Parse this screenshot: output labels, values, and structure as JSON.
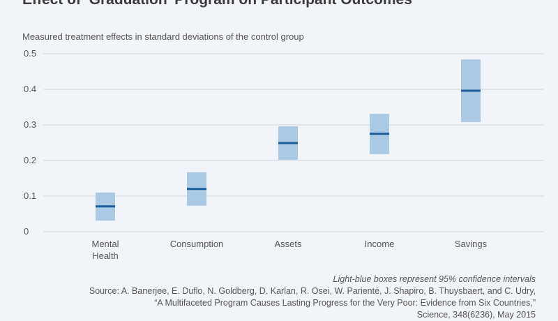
{
  "chart_data": {
    "type": "interval",
    "title": "Effect of ‘Graduation’ Program on Participant Outcomes",
    "subtitle": "Measured treatment effects in standard deviations of the control group",
    "categories": [
      [
        "Mental",
        "Health"
      ],
      [
        "Consumption"
      ],
      [
        "Assets"
      ],
      [
        "Income"
      ],
      [
        "Savings"
      ]
    ],
    "series": [
      {
        "name": "estimate",
        "values": [
          0.071,
          0.12,
          0.249,
          0.275,
          0.396
        ]
      },
      {
        "name": "ci_low",
        "values": [
          0.031,
          0.073,
          0.202,
          0.218,
          0.308
        ]
      },
      {
        "name": "ci_high",
        "values": [
          0.11,
          0.167,
          0.296,
          0.331,
          0.484
        ]
      }
    ],
    "ylim": [
      0,
      0.5
    ],
    "yticks": [
      "0",
      "0.1",
      "0.2",
      "0.3",
      "0.4",
      "0.5"
    ],
    "grid": true,
    "colors": {
      "box": "#a9c9e5",
      "line": "#1b5e9b",
      "grid": "#d0d5da",
      "background": "#f1f5f9"
    },
    "note": "Light-blue boxes represent 95% confidence intervals",
    "source": [
      "Source: A. Banerjee, E. Duflo, N. Goldberg, D. Karlan, R. Osei, W. Parienté, J. Shapiro, B. Thuysbaert, and C. Udry,",
      "“A Multifaceted Program Causes Lasting Progress for the Very Poor: Evidence from Six Countries,”",
      "Science, 348(6236), May 2015"
    ]
  }
}
